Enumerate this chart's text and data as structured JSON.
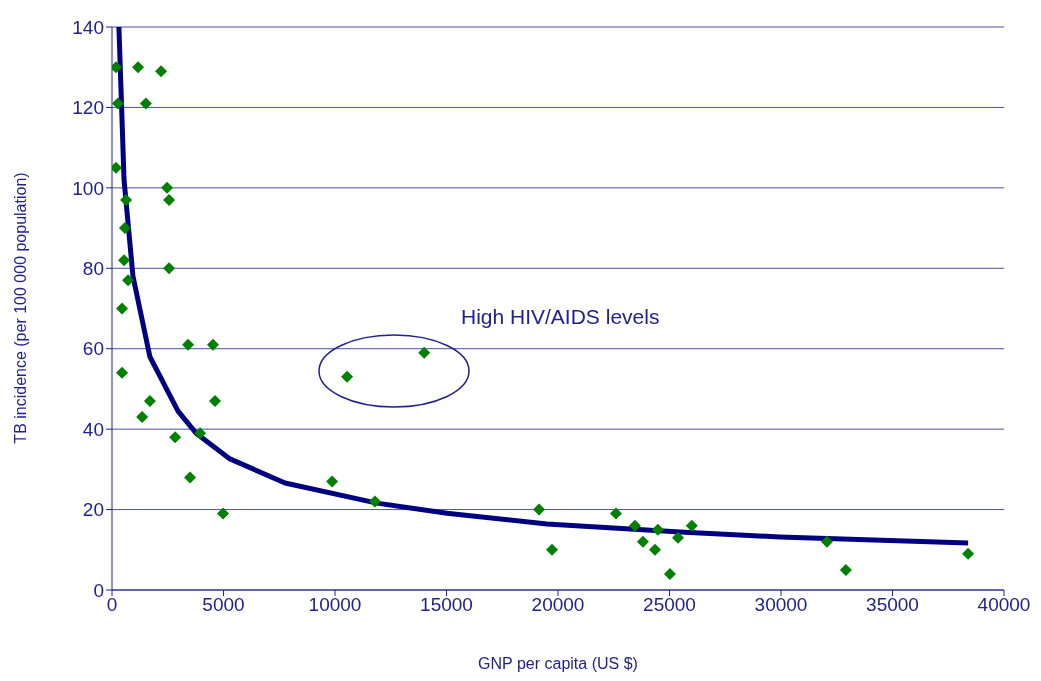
{
  "chart_data": {
    "type": "scatter",
    "xlabel": "GNP per capita (US $)",
    "ylabel": "TB incidence (per 100 000 population)",
    "xlim": [
      0,
      40000
    ],
    "xticks": [
      0,
      5000,
      10000,
      15000,
      20000,
      25000,
      30000,
      35000,
      40000
    ],
    "ylim": [
      0,
      140
    ],
    "yticks": [
      0,
      20,
      40,
      60,
      80,
      100,
      120,
      140
    ],
    "grid": "y",
    "marker": "diamond",
    "annotations": [
      "High HIV/AIDS levels"
    ],
    "series": [
      {
        "type": "scatter",
        "color": "#008000",
        "x": [
          180,
          270,
          180,
          630,
          580,
          540,
          720,
          450,
          450,
          1170,
          1520,
          2200,
          2470,
          2560,
          2560,
          3410,
          4530,
          4620,
          1700,
          1350,
          2830,
          3950,
          3500,
          4980,
          9870,
          11790,
          10540,
          14000,
          19150,
          19730,
          22600,
          23450,
          23810,
          24350,
          24480,
          25020,
          25380,
          26000,
          32060,
          32910,
          38390
        ],
        "values": [
          130,
          121,
          105,
          97,
          90,
          82,
          77,
          70,
          54,
          130,
          121,
          129,
          100,
          97,
          80,
          61,
          61,
          47,
          47,
          43,
          38,
          39,
          28,
          19,
          27,
          22,
          53,
          59,
          20,
          10,
          19,
          16,
          12,
          10,
          15,
          4,
          13,
          16,
          12,
          5,
          9
        ]
      },
      {
        "type": "line",
        "color": "#000080",
        "marker": "none",
        "line_style": "solid",
        "x": [
          310,
          540,
          940,
          1700,
          2960,
          3770,
          5290,
          7760,
          11880,
          15020,
          19500,
          25470,
          29950,
          38390
        ],
        "values": [
          140,
          102,
          78,
          58,
          44.5,
          39,
          32.6,
          26.6,
          21.6,
          19.1,
          16.4,
          14.4,
          13.2,
          11.7
        ]
      }
    ]
  }
}
